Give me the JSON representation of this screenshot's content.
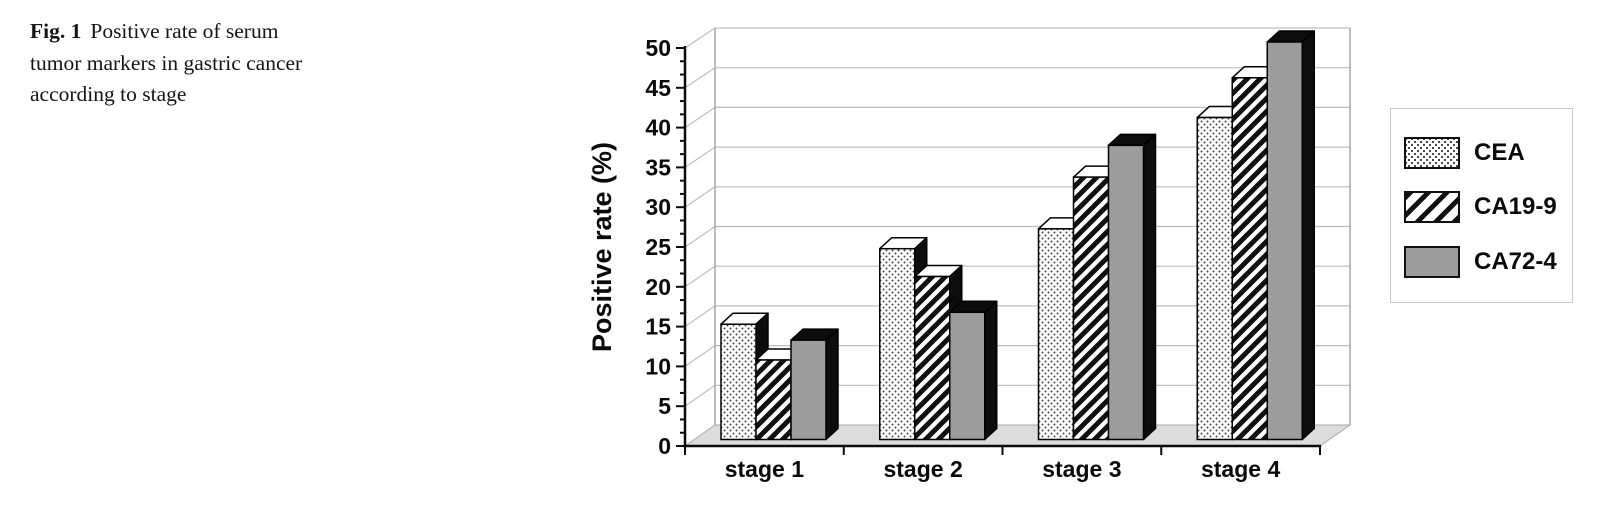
{
  "caption": {
    "fig_label": "Fig. 1",
    "lines": [
      "Positive rate of serum",
      "tumor markers in gastric cancer",
      "according to stage"
    ]
  },
  "chart_data": {
    "type": "bar",
    "variant": "3d-clustered-column",
    "categories": [
      "stage 1",
      "stage 2",
      "stage 3",
      "stage 4"
    ],
    "series": [
      {
        "name": "CEA",
        "pattern": "dots",
        "values": [
          14.5,
          24,
          26.5,
          40.5
        ]
      },
      {
        "name": "CA19-9",
        "pattern": "diagonal-stripes",
        "values": [
          10,
          20.5,
          33,
          45.5
        ]
      },
      {
        "name": "CA72-4",
        "pattern": "solid",
        "color": "#9c9c9c",
        "values": [
          12.5,
          16,
          37,
          50
        ]
      }
    ],
    "xlabel": "",
    "ylabel": "Positive rate (%)",
    "ylim": [
      0,
      50
    ],
    "yticks": [
      0,
      5,
      10,
      15,
      20,
      25,
      30,
      35,
      40,
      45,
      50
    ],
    "grid": true,
    "legend_position": "right"
  },
  "colors": {
    "bar_gray": "#9c9c9c",
    "bar_side": "#0d0d0d",
    "floor": "#dcdcdc",
    "gridline": "#bdbdbd",
    "wall_edge": "#9a9a9a",
    "axis": "#0a0a0a"
  }
}
